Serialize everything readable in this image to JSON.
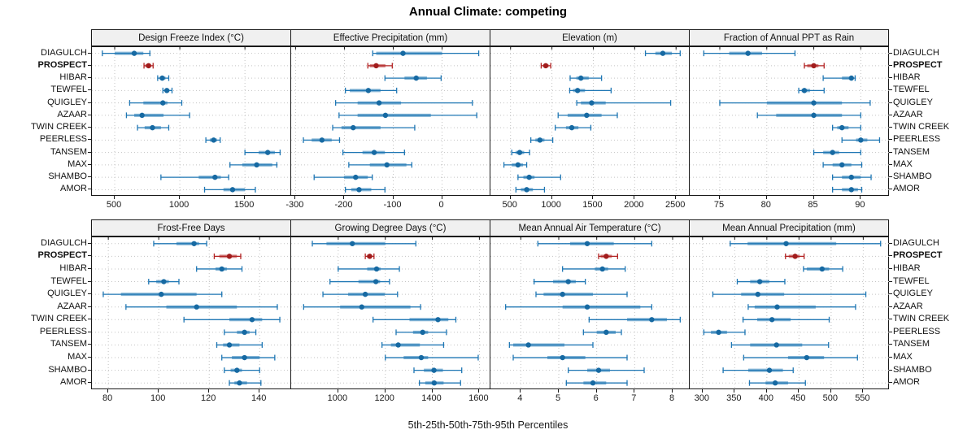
{
  "chart_data": {
    "type": "interval-dotplot",
    "title": "Annual Climate: competing",
    "footer": "5th-25th-50th-75th-95th Percentiles",
    "percentiles_shown": [
      5,
      25,
      50,
      75,
      95
    ],
    "stations": [
      "DIAGULCH",
      "PROSPECT",
      "HIBAR",
      "TEWFEL",
      "QUIGLEY",
      "AZAAR",
      "TWIN CREEK",
      "PEERLESS",
      "TANSEM",
      "MAX",
      "SHAMBO",
      "AMOR"
    ],
    "highlight": "PROSPECT",
    "legend_position": "none",
    "grid": "dotted",
    "panels": [
      {
        "title": "Design Freeze Index (°C)",
        "row": 0,
        "col": 0,
        "xlim": [
          325,
          1855
        ],
        "ticks": [
          500,
          1000,
          1500
        ],
        "values": [
          [
            405,
            500,
            650,
            720,
            770
          ],
          [
            725,
            735,
            760,
            780,
            795
          ],
          [
            830,
            845,
            865,
            890,
            915
          ],
          [
            870,
            885,
            900,
            920,
            940
          ],
          [
            615,
            720,
            870,
            905,
            1015
          ],
          [
            590,
            650,
            710,
            875,
            1075
          ],
          [
            675,
            730,
            790,
            855,
            915
          ],
          [
            1200,
            1230,
            1260,
            1285,
            1310
          ],
          [
            1500,
            1605,
            1675,
            1730,
            1770
          ],
          [
            1385,
            1480,
            1590,
            1710,
            1745
          ],
          [
            855,
            1145,
            1270,
            1315,
            1375
          ],
          [
            1190,
            1335,
            1405,
            1500,
            1580
          ]
        ]
      },
      {
        "title": "Effective Precipitation (mm)",
        "row": 0,
        "col": 1,
        "xlim": [
          -309,
          99
        ],
        "ticks": [
          -300,
          -200,
          -100,
          0
        ],
        "values": [
          [
            -142,
            -135,
            -80,
            0,
            75
          ],
          [
            -152,
            -148,
            -135,
            -116,
            -102
          ],
          [
            -117,
            -77,
            -53,
            -31,
            -2
          ],
          [
            -198,
            -189,
            -151,
            -126,
            -93
          ],
          [
            -218,
            -173,
            -129,
            -84,
            62
          ],
          [
            -211,
            -173,
            -116,
            -23,
            71
          ],
          [
            -224,
            -206,
            -182,
            -126,
            -56
          ],
          [
            -284,
            -267,
            -246,
            -226,
            -210
          ],
          [
            -203,
            -163,
            -139,
            -117,
            -77
          ],
          [
            -191,
            -148,
            -113,
            -73,
            -62
          ],
          [
            -262,
            -201,
            -177,
            -152,
            -143
          ],
          [
            -198,
            -186,
            -170,
            -145,
            -117
          ]
        ]
      },
      {
        "title": "Elevation (m)",
        "row": 0,
        "col": 2,
        "xlim": [
          257,
          2665
        ],
        "ticks": [
          500,
          1000,
          1500,
          2000,
          2500
        ],
        "values": [
          [
            2130,
            2250,
            2340,
            2450,
            2550
          ],
          [
            870,
            895,
            925,
            960,
            985
          ],
          [
            1220,
            1295,
            1350,
            1445,
            1600
          ],
          [
            1215,
            1255,
            1310,
            1400,
            1715
          ],
          [
            1300,
            1350,
            1480,
            1650,
            2435
          ],
          [
            1075,
            1190,
            1420,
            1600,
            1790
          ],
          [
            1040,
            1170,
            1240,
            1320,
            1470
          ],
          [
            745,
            800,
            855,
            910,
            1010
          ],
          [
            515,
            560,
            610,
            665,
            730
          ],
          [
            420,
            515,
            590,
            650,
            695
          ],
          [
            590,
            655,
            725,
            790,
            1105
          ],
          [
            565,
            625,
            695,
            770,
            910
          ]
        ]
      },
      {
        "title": "Fraction of Annual PPT as Rain",
        "row": 0,
        "col": 3,
        "xlim": [
          71.8,
          93.0
        ],
        "ticks": [
          75,
          80,
          85,
          90
        ],
        "values": [
          [
            73.3,
            76,
            78,
            79.5,
            83
          ],
          [
            84,
            84.3,
            85,
            85.5,
            86.1
          ],
          [
            86,
            88,
            89,
            89.2,
            89.4
          ],
          [
            83.4,
            83.7,
            84,
            84.6,
            86.1
          ],
          [
            75,
            80,
            85,
            88,
            91
          ],
          [
            79,
            81,
            85,
            88,
            90
          ],
          [
            87,
            87.5,
            88,
            88.7,
            90
          ],
          [
            88,
            89.5,
            90,
            90.7,
            92
          ],
          [
            85,
            86,
            87,
            87.7,
            90
          ],
          [
            86,
            87,
            88,
            89,
            90.1
          ],
          [
            87,
            88,
            89,
            90,
            91.1
          ],
          [
            87,
            88,
            89,
            89.7,
            90.1
          ]
        ]
      },
      {
        "title": "Frost-Free Days",
        "row": 1,
        "col": 0,
        "xlim": [
          73.5,
          152.5
        ],
        "ticks": [
          80,
          100,
          120,
          140
        ],
        "values": [
          [
            98,
            107,
            114,
            116,
            119
          ],
          [
            122,
            124,
            128,
            131,
            132.5
          ],
          [
            115,
            122.5,
            125,
            127,
            133
          ],
          [
            96,
            99,
            102,
            104,
            108
          ],
          [
            78,
            85,
            101,
            115,
            125
          ],
          [
            87,
            103,
            115,
            131,
            147
          ],
          [
            110,
            128,
            137,
            141,
            148
          ],
          [
            126,
            131,
            134,
            136,
            138.5
          ],
          [
            123,
            125.5,
            128,
            132,
            141
          ],
          [
            125,
            129,
            134,
            140,
            146
          ],
          [
            126,
            128.5,
            131,
            133,
            140
          ],
          [
            128,
            130,
            132,
            135,
            140.5
          ]
        ]
      },
      {
        "title": "Growing Degree Days (°C)",
        "row": 1,
        "col": 1,
        "xlim": [
          800,
          1647
        ],
        "ticks": [
          1000,
          1200,
          1400,
          1600
        ],
        "values": [
          [
            890,
            950,
            1060,
            1200,
            1330
          ],
          [
            1115,
            1122,
            1134,
            1143,
            1152
          ],
          [
            1000,
            1123,
            1163,
            1180,
            1260
          ],
          [
            965,
            1086,
            1160,
            1178,
            1218
          ],
          [
            935,
            1042,
            1115,
            1198,
            1252
          ],
          [
            853,
            1008,
            1100,
            1307,
            1350
          ],
          [
            1148,
            1303,
            1424,
            1468,
            1500
          ],
          [
            1246,
            1318,
            1359,
            1382,
            1460
          ],
          [
            1186,
            1224,
            1255,
            1347,
            1448
          ],
          [
            1200,
            1278,
            1353,
            1382,
            1595
          ],
          [
            1322,
            1364,
            1407,
            1445,
            1525
          ],
          [
            1345,
            1370,
            1408,
            1448,
            1520
          ]
        ]
      },
      {
        "title": "Mean Annual Air Temperature (°C)",
        "row": 1,
        "col": 2,
        "xlim": [
          3.2,
          8.45
        ],
        "ticks": [
          4,
          5,
          6,
          7,
          8
        ],
        "values": [
          [
            4.45,
            5.3,
            5.75,
            6.45,
            7.45
          ],
          [
            6.05,
            6.1,
            6.25,
            6.4,
            6.55
          ],
          [
            5.1,
            5.95,
            6.15,
            6.3,
            6.75
          ],
          [
            4.35,
            4.85,
            5.25,
            5.45,
            5.7
          ],
          [
            4.4,
            4.6,
            5.1,
            5.9,
            6.8
          ],
          [
            3.6,
            5.1,
            5.75,
            7.15,
            7.45
          ],
          [
            5.8,
            6.8,
            7.45,
            7.85,
            8.2
          ],
          [
            5.65,
            6.0,
            6.25,
            6.5,
            6.65
          ],
          [
            3.7,
            3.8,
            4.2,
            5.15,
            5.9
          ],
          [
            3.8,
            4.7,
            5.1,
            5.7,
            6.8
          ],
          [
            5.25,
            5.75,
            6.05,
            6.35,
            7.25
          ],
          [
            5.2,
            5.65,
            5.9,
            6.25,
            6.8
          ]
        ]
      },
      {
        "title": "Mean Annual Precipitation (mm)",
        "row": 1,
        "col": 3,
        "xlim": [
          280,
          590
        ],
        "ticks": [
          300,
          350,
          400,
          450,
          500,
          550
        ],
        "values": [
          [
            343,
            370,
            430,
            508,
            577
          ],
          [
            429,
            434,
            444,
            451,
            458
          ],
          [
            457,
            462,
            486,
            497,
            518
          ],
          [
            354,
            374,
            389,
            404,
            428
          ],
          [
            316,
            360,
            386,
            427,
            554
          ],
          [
            371,
            381,
            416,
            476,
            538
          ],
          [
            363,
            385,
            408,
            437,
            497
          ],
          [
            302,
            313,
            325,
            338,
            366
          ],
          [
            345,
            374,
            415,
            455,
            496
          ],
          [
            364,
            433,
            462,
            489,
            541
          ],
          [
            332,
            371,
            404,
            425,
            441
          ],
          [
            373,
            398,
            413,
            433,
            460
          ]
        ]
      }
    ],
    "colors": {
      "normal": "#1f77b4",
      "normal_dot": "#1669a2",
      "highlight": "#b22222",
      "highlight_dot": "#a11c1c",
      "grid": "#c3c3c3",
      "strip_bg": "#f0f0f0",
      "border": "#1a1a1a"
    }
  }
}
